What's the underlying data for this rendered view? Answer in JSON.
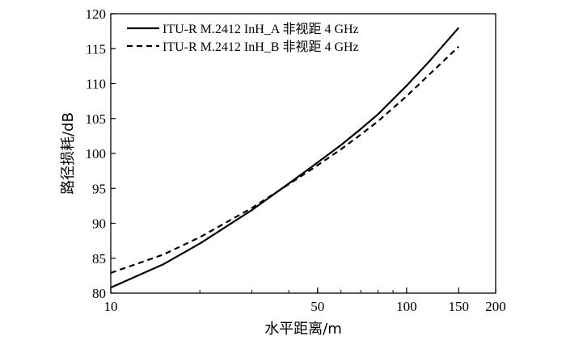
{
  "chart_data": {
    "type": "line",
    "xlabel": "水平距离/m",
    "ylabel": "路径损耗/dB",
    "xscale": "log",
    "xlim": [
      10,
      200
    ],
    "ylim": [
      80,
      120
    ],
    "x_ticks": [
      10,
      50,
      100,
      150,
      200
    ],
    "y_ticks": [
      80,
      85,
      90,
      95,
      100,
      105,
      110,
      115,
      120
    ],
    "grid": false,
    "legend_position": "top-left",
    "series": [
      {
        "name": "ITU-R M.2412 InH_A 非视距 4 GHz",
        "line_style": "solid",
        "color": "#000000",
        "x": [
          10,
          15,
          20,
          30,
          40,
          50,
          60,
          70,
          80,
          100,
          120,
          150
        ],
        "y": [
          80.8,
          84.1,
          87.1,
          91.9,
          95.7,
          98.7,
          101.2,
          103.5,
          105.6,
          109.7,
          113.3,
          118.0
        ]
      },
      {
        "name": "ITU-R M.2412 InH_B 非视距 4 GHz",
        "line_style": "dashed",
        "color": "#000000",
        "x": [
          10,
          15,
          20,
          30,
          40,
          50,
          60,
          70,
          80,
          100,
          120,
          150
        ],
        "y": [
          82.9,
          85.5,
          88.0,
          92.2,
          95.6,
          98.3,
          100.6,
          102.7,
          104.6,
          108.2,
          111.4,
          115.3
        ]
      }
    ]
  }
}
